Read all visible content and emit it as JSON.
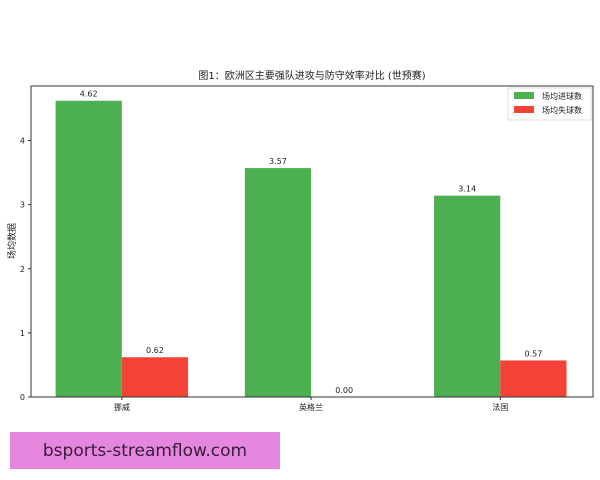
{
  "chart_data": {
    "type": "bar",
    "title": "图1：欧洲区主要强队进攻与防守效率对比 (世预赛)",
    "xlabel": "",
    "ylabel": "场均数据",
    "categories": [
      "挪威",
      "英格兰",
      "法国"
    ],
    "series": [
      {
        "name": "场均进球数",
        "values": [
          4.62,
          3.57,
          3.14
        ],
        "color": "#4caf50"
      },
      {
        "name": "场均失球数",
        "values": [
          0.62,
          0.0,
          0.57
        ],
        "color": "#f44336"
      }
    ],
    "data_labels": [
      [
        "4.62",
        "3.57",
        "3.14"
      ],
      [
        "0.62",
        "0.00",
        "0.57"
      ]
    ],
    "yticks": [
      "0",
      "1",
      "2",
      "3",
      "4"
    ],
    "ylim": [
      0,
      4.85
    ],
    "grid": false,
    "legend": "top-right"
  },
  "watermark": "bsports-streamflow.com"
}
